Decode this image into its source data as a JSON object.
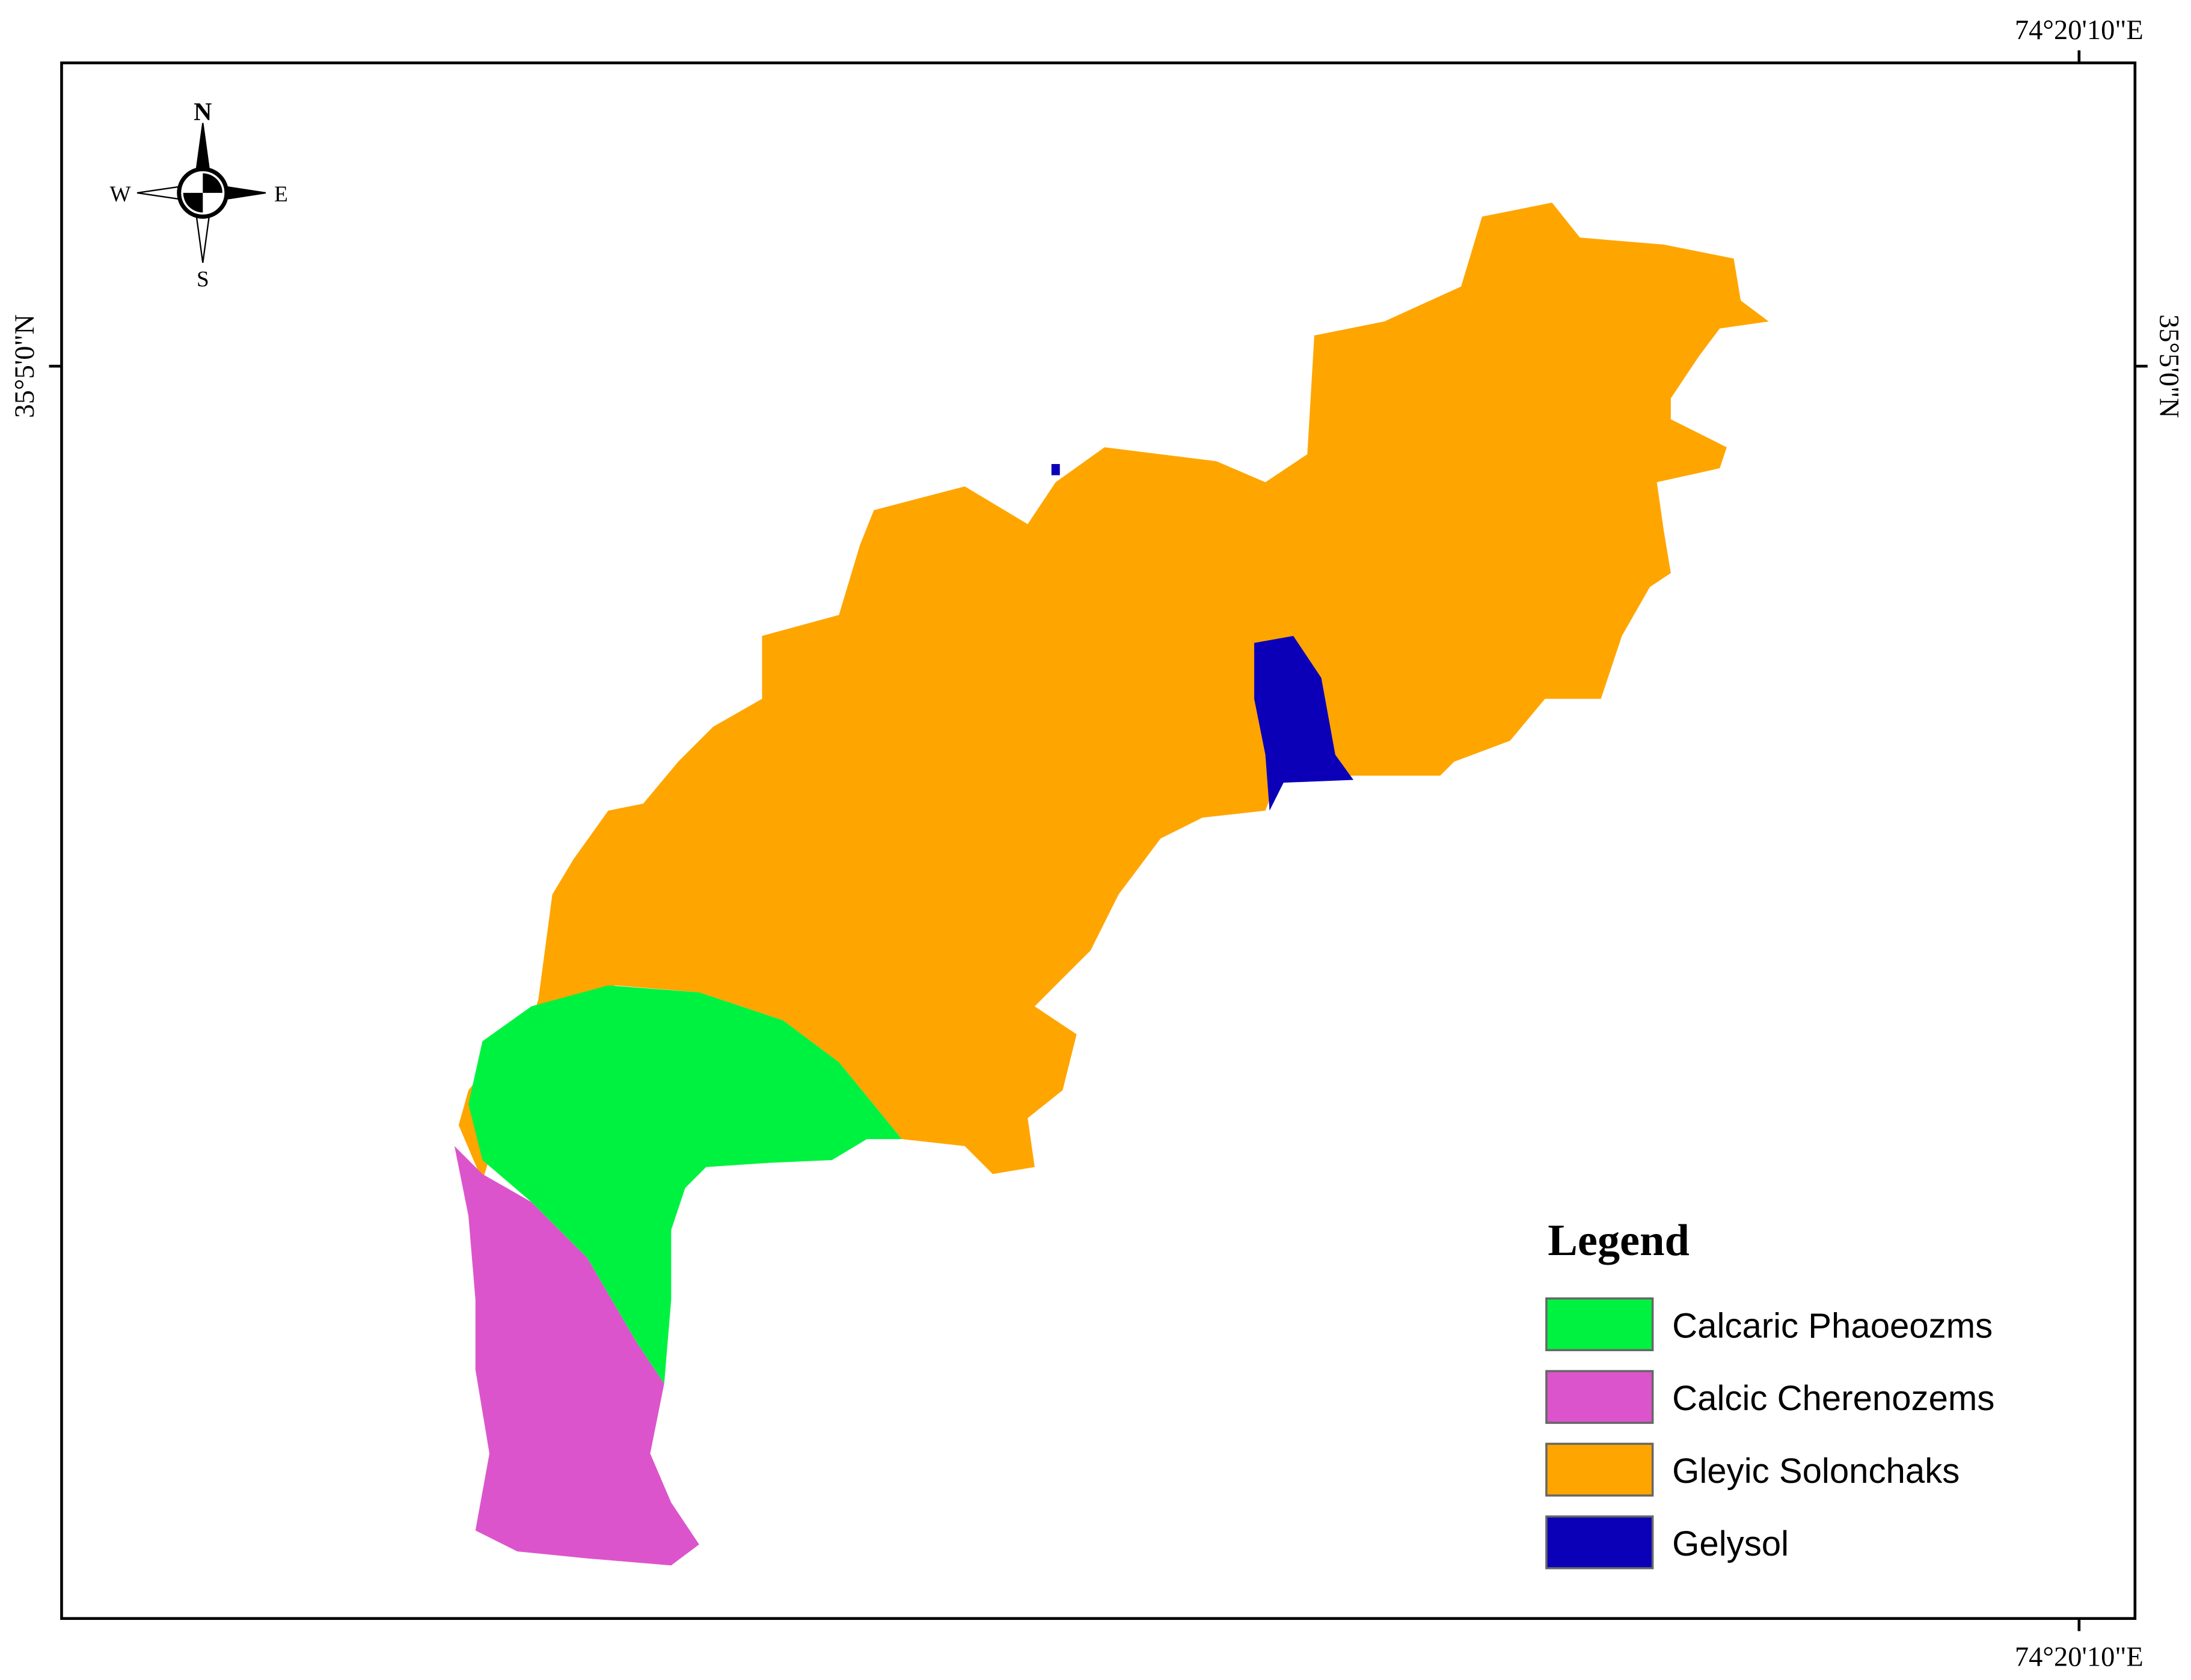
{
  "map": {
    "coordinates": {
      "top": "74°20'10\"E",
      "bottom": "74°20'10\"E",
      "left": "35°5'0\"N",
      "right": "35°5'0\"N"
    },
    "compass": {
      "n": "N",
      "e": "E",
      "s": "S",
      "w": "W"
    },
    "legend": {
      "title": "Legend",
      "items": [
        {
          "name": "Calcaric Phaoeozms",
          "color": "#00f240"
        },
        {
          "name": "Calcic Cherenozems",
          "color": "#dc54cc"
        },
        {
          "name": "Gleyic Solonchaks",
          "color": "#ffa500"
        },
        {
          "name": "Gelysol",
          "color": "#0b00b8"
        }
      ]
    }
  }
}
